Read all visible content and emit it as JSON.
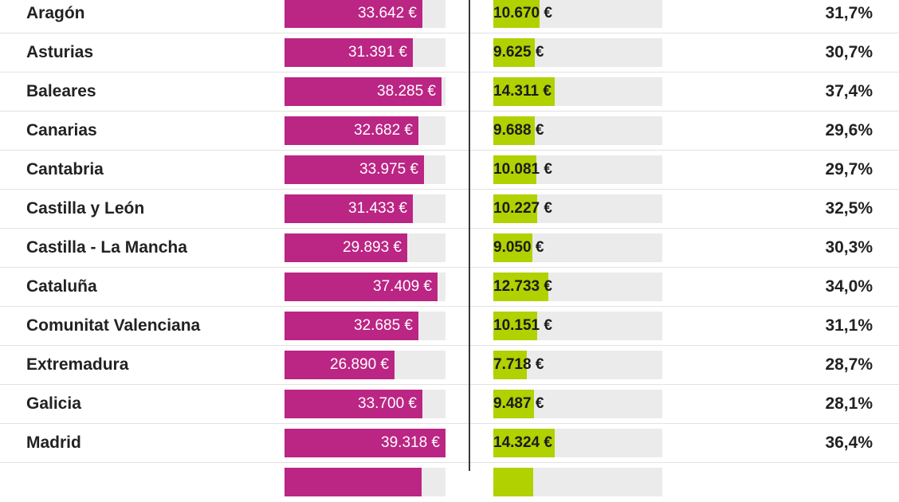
{
  "chart_data": {
    "type": "table",
    "value_max": 39318,
    "colors": {
      "salary_bar": "#bb2584",
      "pension_bar": "#b1d100",
      "bar_track": "#ebebeb",
      "divider": "#3a3a3a"
    },
    "rows": [
      {
        "region": "Aragón",
        "salary": 33642,
        "salary_label": "33.642 €",
        "pension": 10670,
        "pension_label": "10.670 €",
        "pct": "31,7%"
      },
      {
        "region": "Asturias",
        "salary": 31391,
        "salary_label": "31.391 €",
        "pension": 9625,
        "pension_label": "9.625 €",
        "pct": "30,7%"
      },
      {
        "region": "Baleares",
        "salary": 38285,
        "salary_label": "38.285 €",
        "pension": 14311,
        "pension_label": "14.311 €",
        "pct": "37,4%"
      },
      {
        "region": "Canarias",
        "salary": 32682,
        "salary_label": "32.682 €",
        "pension": 9688,
        "pension_label": "9.688 €",
        "pct": "29,6%"
      },
      {
        "region": "Cantabria",
        "salary": 33975,
        "salary_label": "33.975 €",
        "pension": 10081,
        "pension_label": "10.081 €",
        "pct": "29,7%"
      },
      {
        "region": "Castilla y León",
        "salary": 31433,
        "salary_label": "31.433 €",
        "pension": 10227,
        "pension_label": "10.227 €",
        "pct": "32,5%"
      },
      {
        "region": "Castilla - La Mancha",
        "salary": 29893,
        "salary_label": "29.893 €",
        "pension": 9050,
        "pension_label": "9.050 €",
        "pct": "30,3%"
      },
      {
        "region": "Cataluña",
        "salary": 37409,
        "salary_label": "37.409 €",
        "pension": 12733,
        "pension_label": "12.733 €",
        "pct": "34,0%"
      },
      {
        "region": "Comunitat Valenciana",
        "salary": 32685,
        "salary_label": "32.685 €",
        "pension": 10151,
        "pension_label": "10.151 €",
        "pct": "31,1%"
      },
      {
        "region": "Extremadura",
        "salary": 26890,
        "salary_label": "26.890 €",
        "pension": 7718,
        "pension_label": "7.718 €",
        "pct": "28,7%"
      },
      {
        "region": "Galicia",
        "salary": 33700,
        "salary_label": "33.700 €",
        "pension": 9487,
        "pension_label": "9.487 €",
        "pct": "28,1%"
      },
      {
        "region": "Madrid",
        "salary": 39318,
        "salary_label": "39.318 €",
        "pension": 14324,
        "pension_label": "14.324 €",
        "pct": "36,4%"
      }
    ],
    "partial_row": {
      "salary": 33500,
      "pension": 9200
    }
  }
}
